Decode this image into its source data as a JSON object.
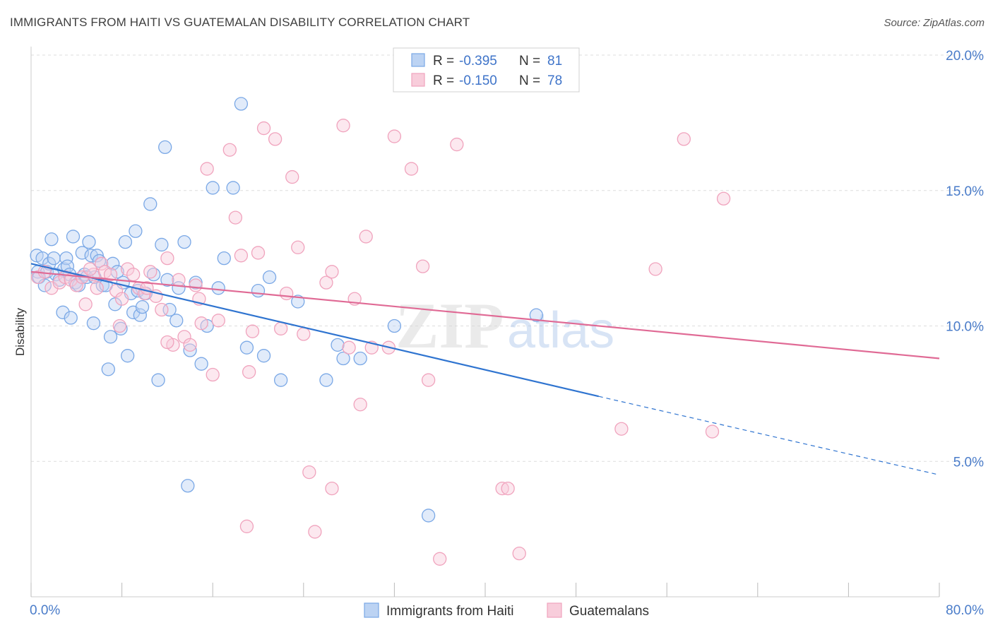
{
  "title": "IMMIGRANTS FROM HAITI VS GUATEMALAN DISABILITY CORRELATION CHART",
  "source": "Source: ZipAtlas.com",
  "watermark": {
    "zip": "ZIP",
    "atlas": "atlas"
  },
  "legend_stats": [
    {
      "r_label": "R =",
      "r_value": "-0.395",
      "n_label": "N =",
      "n_value": "81"
    },
    {
      "r_label": "R =",
      "r_value": "-0.150",
      "n_label": "N =",
      "n_value": "78"
    }
  ],
  "chart_data": {
    "type": "scatter",
    "xlabel": "",
    "ylabel": "Disability",
    "xlim": [
      0,
      80
    ],
    "ylim": [
      0,
      20
    ],
    "x_ticks": [
      {
        "value": 0,
        "label": "0.0%"
      },
      {
        "value": 80,
        "label": "80.0%"
      }
    ],
    "y_ticks": [
      {
        "value": 5,
        "label": "5.0%"
      },
      {
        "value": 10,
        "label": "10.0%"
      },
      {
        "value": 15,
        "label": "15.0%"
      },
      {
        "value": 20,
        "label": "20.0%"
      }
    ],
    "grid": "horizontal dashed",
    "legend_position": "bottom",
    "series": [
      {
        "name": "Immigrants from Haiti",
        "color": "#7aa8e6",
        "fill": "#bcd3f3",
        "line_color": "#2f74d0",
        "trend": {
          "x0": 0,
          "y0": 12.3,
          "x1": 50,
          "y1": 7.4,
          "dash_to_x": 80,
          "dash_to_y": 4.5
        },
        "points": [
          [
            0.5,
            12.6
          ],
          [
            0.6,
            12.0
          ],
          [
            0.7,
            11.8
          ],
          [
            1.0,
            12.5
          ],
          [
            1.2,
            11.5
          ],
          [
            1.4,
            12.0
          ],
          [
            1.6,
            12.3
          ],
          [
            1.8,
            13.2
          ],
          [
            2.0,
            12.5
          ],
          [
            2.2,
            11.9
          ],
          [
            2.5,
            11.7
          ],
          [
            2.8,
            10.5
          ],
          [
            2.9,
            12.1
          ],
          [
            3.1,
            12.5
          ],
          [
            3.2,
            12.2
          ],
          [
            3.4,
            11.9
          ],
          [
            3.5,
            10.3
          ],
          [
            3.7,
            13.3
          ],
          [
            3.9,
            11.6
          ],
          [
            4.2,
            11.5
          ],
          [
            4.5,
            12.7
          ],
          [
            4.7,
            11.9
          ],
          [
            4.9,
            11.8
          ],
          [
            5.1,
            13.1
          ],
          [
            5.3,
            12.6
          ],
          [
            5.5,
            10.1
          ],
          [
            5.6,
            11.8
          ],
          [
            5.8,
            12.6
          ],
          [
            6.0,
            12.4
          ],
          [
            6.3,
            11.5
          ],
          [
            6.6,
            11.5
          ],
          [
            6.8,
            8.4
          ],
          [
            7.0,
            9.6
          ],
          [
            7.2,
            12.3
          ],
          [
            7.4,
            10.8
          ],
          [
            7.6,
            12.0
          ],
          [
            7.9,
            9.9
          ],
          [
            8.1,
            11.6
          ],
          [
            8.3,
            13.1
          ],
          [
            8.5,
            8.9
          ],
          [
            8.8,
            11.2
          ],
          [
            9.0,
            10.5
          ],
          [
            9.2,
            13.5
          ],
          [
            9.4,
            11.3
          ],
          [
            9.6,
            10.4
          ],
          [
            9.8,
            10.7
          ],
          [
            10.1,
            11.2
          ],
          [
            10.5,
            14.5
          ],
          [
            10.8,
            11.9
          ],
          [
            11.2,
            8.0
          ],
          [
            11.5,
            13.0
          ],
          [
            11.8,
            16.6
          ],
          [
            12.0,
            11.7
          ],
          [
            12.2,
            10.6
          ],
          [
            12.8,
            10.2
          ],
          [
            13.0,
            11.4
          ],
          [
            13.5,
            13.1
          ],
          [
            13.8,
            4.1
          ],
          [
            14.0,
            9.1
          ],
          [
            14.5,
            11.6
          ],
          [
            15.0,
            8.6
          ],
          [
            15.5,
            10.0
          ],
          [
            16.0,
            15.1
          ],
          [
            16.5,
            11.4
          ],
          [
            17.0,
            12.5
          ],
          [
            17.8,
            15.1
          ],
          [
            18.5,
            18.2
          ],
          [
            19.0,
            9.2
          ],
          [
            20.0,
            11.3
          ],
          [
            20.5,
            8.9
          ],
          [
            21.0,
            11.8
          ],
          [
            22.0,
            8.0
          ],
          [
            23.5,
            10.9
          ],
          [
            26.0,
            8.0
          ],
          [
            27.0,
            9.3
          ],
          [
            27.5,
            8.8
          ],
          [
            29.0,
            8.8
          ],
          [
            32.0,
            10.0
          ],
          [
            35.0,
            3.0
          ],
          [
            44.5,
            10.4
          ]
        ]
      },
      {
        "name": "Guatemalans",
        "color": "#f0a3bd",
        "fill": "#f8cddb",
        "line_color": "#e06a95",
        "trend": {
          "x0": 0,
          "y0": 12.0,
          "x1": 80,
          "y1": 8.8
        },
        "points": [
          [
            0.6,
            11.8
          ],
          [
            1.2,
            12.0
          ],
          [
            1.8,
            11.4
          ],
          [
            2.5,
            11.6
          ],
          [
            3.0,
            11.8
          ],
          [
            3.5,
            11.7
          ],
          [
            4.0,
            11.5
          ],
          [
            4.5,
            11.8
          ],
          [
            4.8,
            10.8
          ],
          [
            5.5,
            11.9
          ],
          [
            5.8,
            11.4
          ],
          [
            6.2,
            12.3
          ],
          [
            6.5,
            12.0
          ],
          [
            7.0,
            11.9
          ],
          [
            7.5,
            11.3
          ],
          [
            8.0,
            11.0
          ],
          [
            8.5,
            12.1
          ],
          [
            9.0,
            11.9
          ],
          [
            9.5,
            11.4
          ],
          [
            10.0,
            11.2
          ],
          [
            10.5,
            12.0
          ],
          [
            11.0,
            11.1
          ],
          [
            11.5,
            10.6
          ],
          [
            12.0,
            12.5
          ],
          [
            12.5,
            9.3
          ],
          [
            13.0,
            11.7
          ],
          [
            13.5,
            9.6
          ],
          [
            14.0,
            9.3
          ],
          [
            14.5,
            11.5
          ],
          [
            15.0,
            10.1
          ],
          [
            15.5,
            15.8
          ],
          [
            16.0,
            8.2
          ],
          [
            16.5,
            10.2
          ],
          [
            17.5,
            16.5
          ],
          [
            18.0,
            14.0
          ],
          [
            18.5,
            12.6
          ],
          [
            19.0,
            2.6
          ],
          [
            19.2,
            8.3
          ],
          [
            19.5,
            9.8
          ],
          [
            20.0,
            12.7
          ],
          [
            20.5,
            17.3
          ],
          [
            21.5,
            16.9
          ],
          [
            22.0,
            9.9
          ],
          [
            22.5,
            11.2
          ],
          [
            23.0,
            15.5
          ],
          [
            23.5,
            12.9
          ],
          [
            24.0,
            9.7
          ],
          [
            24.5,
            4.6
          ],
          [
            25.0,
            2.4
          ],
          [
            26.0,
            11.6
          ],
          [
            26.5,
            12.0
          ],
          [
            27.5,
            17.4
          ],
          [
            28.0,
            9.2
          ],
          [
            28.5,
            11.0
          ],
          [
            29.0,
            7.1
          ],
          [
            29.5,
            13.3
          ],
          [
            30.0,
            9.2
          ],
          [
            31.5,
            9.2
          ],
          [
            32.0,
            17.0
          ],
          [
            33.5,
            15.8
          ],
          [
            34.5,
            12.2
          ],
          [
            35.0,
            8.0
          ],
          [
            36.0,
            1.4
          ],
          [
            37.5,
            16.7
          ],
          [
            41.5,
            4.0
          ],
          [
            42.0,
            4.0
          ],
          [
            43.0,
            1.6
          ],
          [
            52.0,
            6.2
          ],
          [
            55.0,
            12.1
          ],
          [
            57.5,
            16.9
          ],
          [
            60.0,
            6.1
          ],
          [
            61.0,
            14.7
          ],
          [
            26.5,
            4.0
          ],
          [
            12.0,
            9.4
          ],
          [
            7.8,
            10.0
          ],
          [
            14.8,
            11.0
          ],
          [
            10.2,
            11.4
          ],
          [
            5.2,
            12.1
          ]
        ]
      }
    ]
  }
}
